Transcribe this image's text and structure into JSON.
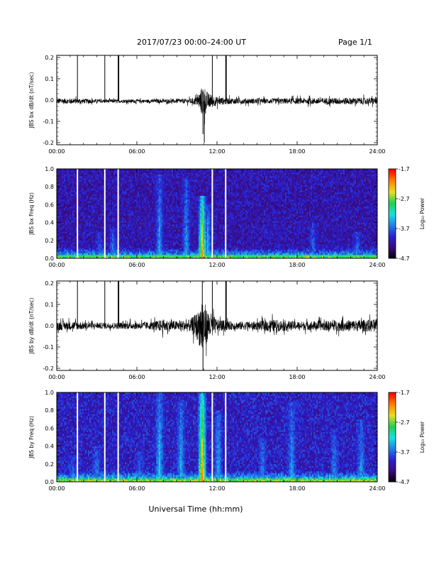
{
  "header": {
    "date_range": "2017/07/23  00:00–24:00 UT",
    "page_label": "Page 1/1"
  },
  "footer": {
    "xlabel": "Universal Time (hh:mm)"
  },
  "colors": {
    "trace": "#000000",
    "data_gap": "#ffffff",
    "colormap": [
      "#000000",
      "#3b0a78",
      "#2a1fd0",
      "#1f7fe8",
      "#18e0e0",
      "#20d050",
      "#e8e020",
      "#ff8000",
      "#ff0000"
    ]
  },
  "chart_data": [
    {
      "type": "line",
      "ylabel": "JBS bx dB/dt (nT/sec)",
      "xlim": [
        0,
        24
      ],
      "ylim": [
        -0.21,
        0.21
      ],
      "x_ticks": [
        "00:00",
        "06:00",
        "12:00",
        "18:00",
        "24:00"
      ],
      "y_ticks": [
        "0.2",
        "0.1",
        "0.0",
        "-0.1",
        "-0.2"
      ],
      "y_tick_values": [
        0.2,
        0.1,
        0.0,
        -0.1,
        -0.2
      ],
      "baseline": -0.005,
      "noise_amplitude": [
        {
          "t": 0,
          "amp": 0.014
        },
        {
          "t": 1.5,
          "amp": 0.012
        },
        {
          "t": 3,
          "amp": 0.009
        },
        {
          "t": 5,
          "amp": 0.008
        },
        {
          "t": 7,
          "amp": 0.008
        },
        {
          "t": 9,
          "amp": 0.01
        },
        {
          "t": 10,
          "amp": 0.012
        },
        {
          "t": 10.5,
          "amp": 0.02
        },
        {
          "t": 10.8,
          "amp": 0.06
        },
        {
          "t": 11.0,
          "amp": 0.08
        },
        {
          "t": 11.3,
          "amp": 0.04
        },
        {
          "t": 12,
          "amp": 0.02
        },
        {
          "t": 13,
          "amp": 0.014
        },
        {
          "t": 15,
          "amp": 0.012
        },
        {
          "t": 18,
          "amp": 0.014
        },
        {
          "t": 21,
          "amp": 0.016
        },
        {
          "t": 24,
          "amp": 0.016
        }
      ],
      "spikes": [
        {
          "t": 1.55,
          "y": 0.21
        },
        {
          "t": 3.6,
          "y": 0.21
        },
        {
          "t": 4.6,
          "y": 0.21
        },
        {
          "t": 4.65,
          "y": 0.21
        },
        {
          "t": 11.65,
          "y": 0.21
        },
        {
          "t": 12.65,
          "y": 0.21
        },
        {
          "t": 12.7,
          "y": 0.21
        },
        {
          "t": 11.05,
          "y": -0.2
        },
        {
          "t": 10.95,
          "y": -0.16
        }
      ]
    },
    {
      "type": "heatmap",
      "ylabel": "JBS bx Freq (Hz)",
      "xlim": [
        0,
        24
      ],
      "ylim": [
        0,
        1.0
      ],
      "x_ticks": [
        "00:00",
        "06:00",
        "12:00",
        "18:00",
        "24:00"
      ],
      "y_ticks": [
        "1.0",
        "0.8",
        "0.6",
        "0.4",
        "0.2",
        "0.0"
      ],
      "y_tick_values": [
        1.0,
        0.8,
        0.6,
        0.4,
        0.2,
        0.0
      ],
      "colorbar_label": "Log₁₀ Power",
      "colorbar_ticks": [
        "-1.7",
        "-2.7",
        "-3.7",
        "-4.7"
      ],
      "colorbar_tick_values": [
        -1.7,
        -2.7,
        -3.7,
        -4.7
      ],
      "clim": [
        -4.7,
        -1.7
      ],
      "gap_times": [
        1.55,
        3.6,
        4.6,
        11.65,
        12.65
      ],
      "background_level": -4.1,
      "bursts": [
        {
          "t": 3.2,
          "level": -3.6,
          "fmax": 0.3
        },
        {
          "t": 4.2,
          "level": -3.5,
          "fmax": 0.35
        },
        {
          "t": 7.7,
          "level": -3.4,
          "fmax": 0.95
        },
        {
          "t": 9.7,
          "level": -3.4,
          "fmax": 0.9
        },
        {
          "t": 10.9,
          "level": -2.0,
          "fmax": 0.7
        },
        {
          "t": 11.3,
          "level": -3.2,
          "fmax": 0.6
        },
        {
          "t": 19.2,
          "level": -3.6,
          "fmax": 0.4
        },
        {
          "t": 22.5,
          "level": -3.5,
          "fmax": 0.3
        }
      ]
    },
    {
      "type": "line",
      "ylabel": "JBS by dB/dt (nT/sec)",
      "xlim": [
        0,
        24
      ],
      "ylim": [
        -0.21,
        0.21
      ],
      "x_ticks": [
        "00:00",
        "06:00",
        "12:00",
        "18:00",
        "24:00"
      ],
      "y_ticks": [
        "0.2",
        "0.1",
        "0.0",
        "-0.1",
        "-0.2"
      ],
      "y_tick_values": [
        0.2,
        0.1,
        0.0,
        -0.1,
        -0.2
      ],
      "baseline": 0.0,
      "noise_amplitude": [
        {
          "t": 0,
          "amp": 0.022
        },
        {
          "t": 1.5,
          "amp": 0.02
        },
        {
          "t": 3,
          "amp": 0.014
        },
        {
          "t": 5,
          "amp": 0.016
        },
        {
          "t": 7,
          "amp": 0.018
        },
        {
          "t": 8,
          "amp": 0.03
        },
        {
          "t": 9,
          "amp": 0.022
        },
        {
          "t": 10,
          "amp": 0.03
        },
        {
          "t": 10.6,
          "amp": 0.07
        },
        {
          "t": 10.9,
          "amp": 0.16
        },
        {
          "t": 11.2,
          "amp": 0.08
        },
        {
          "t": 12,
          "amp": 0.03
        },
        {
          "t": 13,
          "amp": 0.02
        },
        {
          "t": 15,
          "amp": 0.02
        },
        {
          "t": 16,
          "amp": 0.03
        },
        {
          "t": 18,
          "amp": 0.02
        },
        {
          "t": 21,
          "amp": 0.025
        },
        {
          "t": 24,
          "amp": 0.03
        }
      ],
      "spikes": [
        {
          "t": 1.55,
          "y": 0.21
        },
        {
          "t": 3.6,
          "y": 0.21
        },
        {
          "t": 4.6,
          "y": 0.21
        },
        {
          "t": 4.65,
          "y": 0.21
        },
        {
          "t": 11.65,
          "y": 0.21
        },
        {
          "t": 12.65,
          "y": 0.21
        },
        {
          "t": 12.7,
          "y": 0.21
        },
        {
          "t": 10.95,
          "y": -0.21
        },
        {
          "t": 10.9,
          "y": 0.21
        }
      ]
    },
    {
      "type": "heatmap",
      "ylabel": "JBS by Freq (Hz)",
      "xlim": [
        0,
        24
      ],
      "ylim": [
        0,
        1.0
      ],
      "x_ticks": [
        "00:00",
        "06:00",
        "12:00",
        "18:00",
        "24:00"
      ],
      "y_ticks": [
        "1.0",
        "0.8",
        "0.6",
        "0.4",
        "0.2",
        "0.0"
      ],
      "y_tick_values": [
        1.0,
        0.8,
        0.6,
        0.4,
        0.2,
        0.0
      ],
      "colorbar_label": "Log₁₀ Power",
      "colorbar_ticks": [
        "-1.7",
        "-2.7",
        "-3.7",
        "-4.7"
      ],
      "colorbar_tick_values": [
        -1.7,
        -2.7,
        -3.7,
        -4.7
      ],
      "clim": [
        -4.7,
        -1.7
      ],
      "gap_times": [
        1.55,
        3.6,
        4.6,
        11.65,
        12.65
      ],
      "background_level": -4.0,
      "bursts": [
        {
          "t": 1.2,
          "level": -3.6,
          "fmax": 0.3
        },
        {
          "t": 3.0,
          "level": -3.5,
          "fmax": 0.4
        },
        {
          "t": 6.2,
          "level": -3.6,
          "fmax": 0.35
        },
        {
          "t": 7.7,
          "level": -3.2,
          "fmax": 1.0
        },
        {
          "t": 9.3,
          "level": -3.3,
          "fmax": 0.9
        },
        {
          "t": 10.9,
          "level": -1.9,
          "fmax": 1.0
        },
        {
          "t": 12.1,
          "level": -3.3,
          "fmax": 0.8
        },
        {
          "t": 15.4,
          "level": -3.5,
          "fmax": 0.5
        },
        {
          "t": 17.6,
          "level": -3.4,
          "fmax": 0.9
        },
        {
          "t": 20.8,
          "level": -3.5,
          "fmax": 0.6
        },
        {
          "t": 22.8,
          "level": -3.4,
          "fmax": 0.7
        }
      ]
    }
  ]
}
